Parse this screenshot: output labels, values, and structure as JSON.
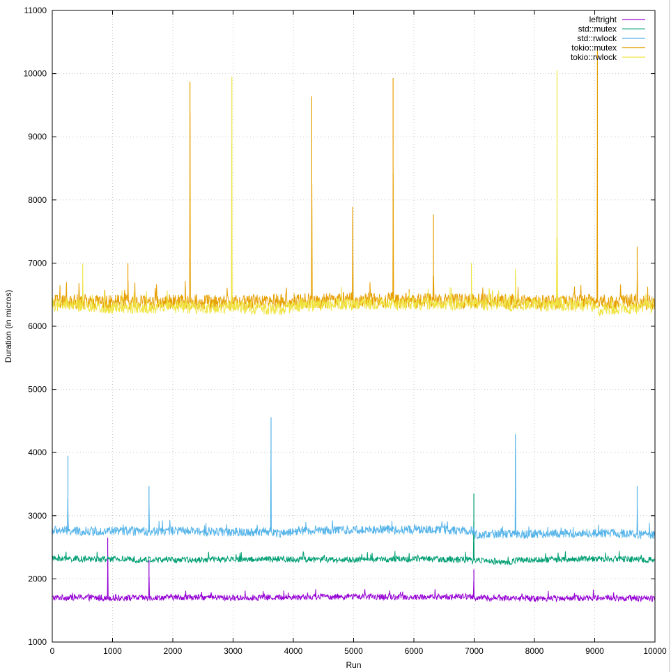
{
  "chart_data": {
    "type": "line",
    "title": "",
    "xlabel": "Run",
    "ylabel": "Duration (in micros)",
    "xlim": [
      0,
      10000
    ],
    "ylim": [
      1000,
      11000
    ],
    "x_ticks": [
      0,
      1000,
      2000,
      3000,
      4000,
      5000,
      6000,
      7000,
      8000,
      9000,
      10000
    ],
    "y_ticks": [
      1000,
      2000,
      3000,
      4000,
      5000,
      6000,
      7000,
      8000,
      9000,
      10000,
      11000
    ],
    "grid": true,
    "legend_position": "top-right",
    "series": [
      {
        "name": "leftright",
        "color": "#9400d3",
        "baseline": 1700,
        "noise": 60,
        "points": [
          [
            0,
            1700
          ],
          [
            500,
            1710
          ],
          [
            915,
            1690
          ],
          [
            920,
            2650
          ],
          [
            925,
            1700
          ],
          [
            1600,
            1700
          ],
          [
            1605,
            2300
          ],
          [
            1610,
            1700
          ],
          [
            2000,
            1710
          ],
          [
            3000,
            1700
          ],
          [
            4000,
            1710
          ],
          [
            5000,
            1720
          ],
          [
            6000,
            1710
          ],
          [
            6990,
            1720
          ],
          [
            6995,
            2150
          ],
          [
            7000,
            1700
          ],
          [
            8000,
            1690
          ],
          [
            9000,
            1700
          ],
          [
            10000,
            1690
          ]
        ]
      },
      {
        "name": "std::mutex",
        "color": "#009e73",
        "baseline": 2310,
        "noise": 60,
        "points": [
          [
            0,
            2320
          ],
          [
            1000,
            2310
          ],
          [
            2000,
            2300
          ],
          [
            3000,
            2310
          ],
          [
            4000,
            2310
          ],
          [
            5000,
            2300
          ],
          [
            6000,
            2320
          ],
          [
            6960,
            2300
          ],
          [
            6970,
            2200
          ],
          [
            6990,
            2330
          ],
          [
            6995,
            3350
          ],
          [
            7000,
            2300
          ],
          [
            7600,
            2260
          ],
          [
            7700,
            2300
          ],
          [
            8000,
            2300
          ],
          [
            9000,
            2320
          ],
          [
            10000,
            2300
          ]
        ]
      },
      {
        "name": "std::rwlock",
        "color": "#56b4e9",
        "baseline": 2760,
        "noise": 90,
        "points": [
          [
            0,
            2770
          ],
          [
            255,
            2760
          ],
          [
            260,
            3950
          ],
          [
            265,
            2750
          ],
          [
            1000,
            2760
          ],
          [
            1600,
            2750
          ],
          [
            1605,
            3470
          ],
          [
            1610,
            2750
          ],
          [
            2000,
            2760
          ],
          [
            3000,
            2740
          ],
          [
            3625,
            2750
          ],
          [
            3630,
            4560
          ],
          [
            3635,
            2740
          ],
          [
            3900,
            2720
          ],
          [
            4000,
            2760
          ],
          [
            5000,
            2780
          ],
          [
            6000,
            2780
          ],
          [
            6995,
            2760
          ],
          [
            7000,
            2700
          ],
          [
            7680,
            2710
          ],
          [
            7685,
            4290
          ],
          [
            7690,
            2700
          ],
          [
            8000,
            2710
          ],
          [
            9000,
            2730
          ],
          [
            9700,
            2710
          ],
          [
            9705,
            3470
          ],
          [
            9710,
            2700
          ],
          [
            10000,
            2690
          ]
        ]
      },
      {
        "name": "tokio::mutex",
        "color": "#e69f00",
        "baseline": 6380,
        "noise": 150,
        "points": [
          [
            0,
            6380
          ],
          [
            1250,
            6400
          ],
          [
            1255,
            7000
          ],
          [
            1260,
            6380
          ],
          [
            2280,
            6390
          ],
          [
            2285,
            9870
          ],
          [
            2290,
            6390
          ],
          [
            3000,
            6380
          ],
          [
            4000,
            6400
          ],
          [
            4300,
            6420
          ],
          [
            4305,
            9640
          ],
          [
            4310,
            6400
          ],
          [
            4980,
            6420
          ],
          [
            4985,
            7890
          ],
          [
            4990,
            6400
          ],
          [
            5650,
            6420
          ],
          [
            5655,
            9930
          ],
          [
            5660,
            6400
          ],
          [
            6000,
            6400
          ],
          [
            6320,
            6420
          ],
          [
            6325,
            7770
          ],
          [
            6330,
            6400
          ],
          [
            7000,
            6400
          ],
          [
            8000,
            6380
          ],
          [
            9000,
            6390
          ],
          [
            9040,
            6380
          ],
          [
            9045,
            10370
          ],
          [
            9050,
            6380
          ],
          [
            9700,
            6400
          ],
          [
            9705,
            7260
          ],
          [
            9710,
            6380
          ],
          [
            10000,
            6380
          ]
        ]
      },
      {
        "name": "tokio::rwlock",
        "color": "#f0e442",
        "baseline": 6330,
        "noise": 130,
        "points": [
          [
            0,
            6330
          ],
          [
            500,
            6330
          ],
          [
            505,
            6990
          ],
          [
            510,
            6300
          ],
          [
            1000,
            6300
          ],
          [
            2000,
            6300
          ],
          [
            2975,
            6300
          ],
          [
            2980,
            9950
          ],
          [
            2985,
            6300
          ],
          [
            3900,
            6280
          ],
          [
            4000,
            6330
          ],
          [
            5000,
            6350
          ],
          [
            6000,
            6350
          ],
          [
            6950,
            6360
          ],
          [
            6955,
            7000
          ],
          [
            6960,
            6340
          ],
          [
            7000,
            6350
          ],
          [
            7680,
            6340
          ],
          [
            7685,
            6900
          ],
          [
            7690,
            6330
          ],
          [
            8000,
            6340
          ],
          [
            8370,
            6330
          ],
          [
            8375,
            10050
          ],
          [
            8380,
            6330
          ],
          [
            9000,
            6330
          ],
          [
            9030,
            6250
          ],
          [
            10000,
            6320
          ]
        ]
      }
    ]
  }
}
